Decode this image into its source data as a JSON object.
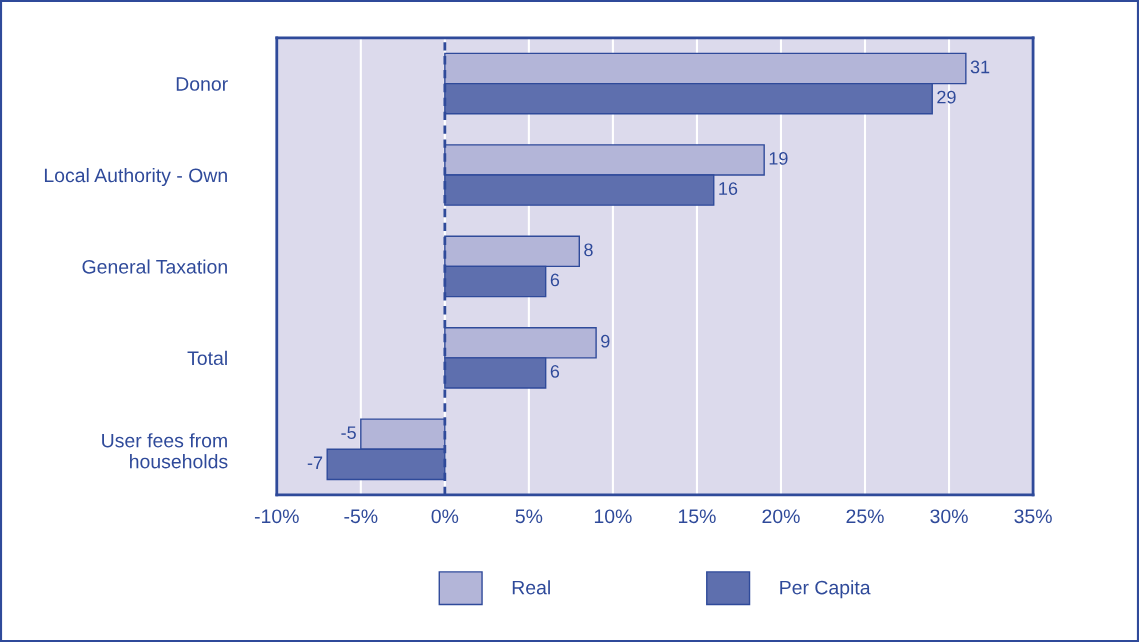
{
  "chart_data": {
    "type": "bar",
    "orientation": "horizontal",
    "categories": [
      "Donor",
      "Local Authority - Own",
      "General Taxation",
      "Total",
      "User fees from\nhouseholds"
    ],
    "series": [
      {
        "name": "Real",
        "color": "#b3b5d8",
        "values": [
          31,
          19,
          8,
          9,
          -5
        ]
      },
      {
        "name": "Per Capita",
        "color": "#5e6fae",
        "values": [
          29,
          16,
          6,
          6,
          -7
        ]
      }
    ],
    "xlim": [
      -10,
      35
    ],
    "xticks": [
      {
        "value": -10,
        "label": "-10%"
      },
      {
        "value": -5,
        "label": "-5%"
      },
      {
        "value": 0,
        "label": "0%"
      },
      {
        "value": 5,
        "label": "5%"
      },
      {
        "value": 10,
        "label": "10%"
      },
      {
        "value": 15,
        "label": "15%"
      },
      {
        "value": 20,
        "label": "20%"
      },
      {
        "value": 25,
        "label": "25%"
      },
      {
        "value": 30,
        "label": "30%"
      },
      {
        "value": 35,
        "label": "35%"
      }
    ],
    "ref_lines": [
      {
        "axis": "x",
        "value": 0,
        "color": "#2f4a9a",
        "line_style": "dashed"
      }
    ],
    "data_labels": true,
    "grid": "x",
    "legend": "bottom"
  }
}
